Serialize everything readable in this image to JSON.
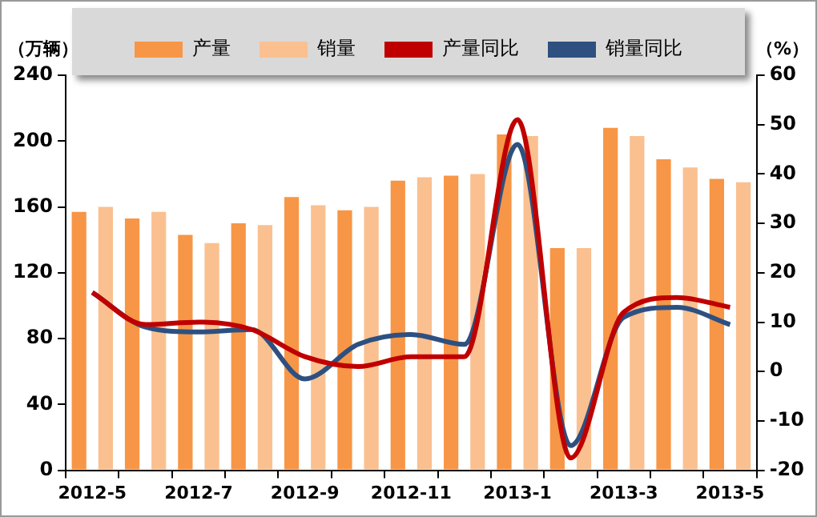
{
  "chart_data": {
    "type": "bar",
    "ylabel": "（万辆）",
    "y2label": "（%）",
    "categories": [
      "2012-5",
      null,
      "2012-7",
      null,
      "2012-9",
      null,
      "2012-11",
      null,
      "2013-1",
      null,
      "2013-3",
      null,
      "2013-5"
    ],
    "series": [
      {
        "name": "产量",
        "color": "#f79646",
        "values": [
          157,
          153,
          143,
          150,
          166,
          158,
          176,
          179,
          204,
          135,
          208,
          189,
          177
        ]
      },
      {
        "name": "销量",
        "color": "#fac090",
        "values": [
          160,
          157,
          138,
          149,
          161,
          160,
          178,
          180,
          203,
          135,
          203,
          184,
          175
        ]
      },
      {
        "name": "产量同比",
        "type": "line",
        "axis": "y2",
        "color": "#c00000",
        "values": [
          16,
          9.5,
          10,
          8.5,
          3,
          1,
          3,
          3,
          51,
          -17.5,
          12,
          15,
          13
        ]
      },
      {
        "name": "销量同比",
        "type": "line",
        "axis": "y2",
        "color": "#2e5080",
        "values": [
          16,
          9,
          8,
          8.5,
          -1.5,
          5.5,
          7.5,
          5.5,
          46,
          -15,
          11,
          13,
          9.5
        ]
      }
    ],
    "ylim": [
      0,
      240
    ],
    "yticks": [
      0,
      40,
      80,
      120,
      160,
      200,
      240
    ],
    "y2lim": [
      -20,
      60
    ],
    "y2ticks": [
      -20,
      -10,
      0,
      10,
      20,
      30,
      40,
      50,
      60
    ],
    "grid": false,
    "legend": "top",
    "marker": "none",
    "line_style": "solid"
  }
}
